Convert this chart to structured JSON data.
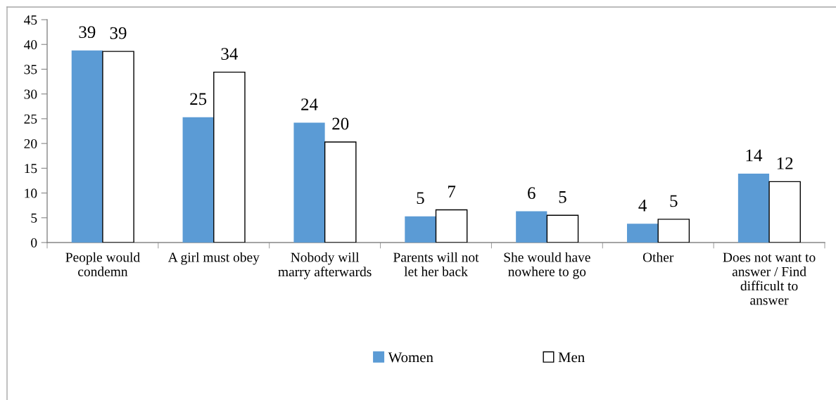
{
  "chart_data": {
    "type": "bar",
    "categories": [
      "People would\ncondemn",
      "A girl must obey",
      "Nobody will\nmarry afterwards",
      "Parents will not\nlet her back",
      "She would have\nnowhere to go",
      "Other",
      "Does not want to\nanswer / Find\ndifficult to\nanswer"
    ],
    "series": [
      {
        "name": "Women",
        "color": "#5b9bd5",
        "values": [
          38.8,
          25.3,
          24.2,
          5.3,
          6.3,
          3.8,
          13.9
        ],
        "value_labels": [
          "39",
          "25",
          "24",
          "5",
          "6",
          "4",
          "14"
        ]
      },
      {
        "name": "Men",
        "color": "#ffffff",
        "values": [
          38.6,
          34.4,
          20.3,
          6.6,
          5.5,
          4.7,
          12.3
        ],
        "value_labels": [
          "39",
          "34",
          "20",
          "7",
          "5",
          "5",
          "12"
        ]
      }
    ],
    "ylim": [
      0,
      45
    ],
    "yticks": [
      0,
      5,
      10,
      15,
      20,
      25,
      30,
      35,
      40,
      45
    ],
    "legend": "bottom"
  }
}
